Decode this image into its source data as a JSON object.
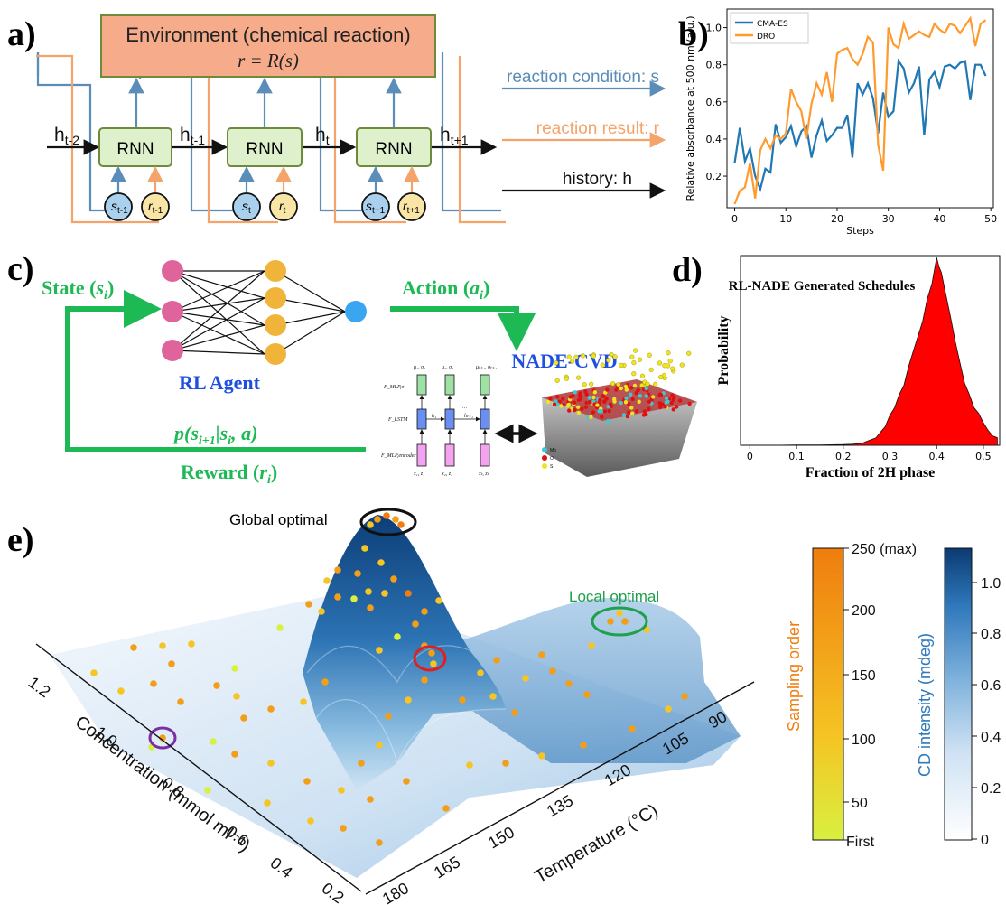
{
  "panel_a": {
    "label": "a)",
    "environment_title": "Environment (chemical reaction)",
    "environment_formula": "r = R(s)",
    "rnn_label": "RNN",
    "hidden_states": [
      "h",
      "h",
      "h",
      "h"
    ],
    "hidden_subs": [
      "t-2",
      "t-1",
      "t",
      "t+1"
    ],
    "s_subs": [
      "t-1",
      "t",
      "t+1"
    ],
    "r_subs": [
      "t-1",
      "t",
      "t+1"
    ],
    "legend": {
      "condition": "reaction condition: s",
      "result": "reaction result: r",
      "history": "history: h"
    },
    "colors": {
      "condition": "#5b8db8",
      "result": "#f4a46a",
      "history": "#111111",
      "env_fill": "#f6ab8a",
      "rnn_fill": "#dff0cc"
    }
  },
  "panel_b": {
    "label": "b)",
    "chart_data": {
      "type": "line",
      "xlabel": "Steps",
      "ylabel": "Relative absorbance at 500 nm (a.u.)",
      "xlim": [
        -1.5,
        50.5
      ],
      "ylim": [
        0.03,
        1.1
      ],
      "xticks": [
        0,
        10,
        20,
        30,
        40,
        50
      ],
      "yticks": [
        0.2,
        0.4,
        0.6,
        0.8,
        1.0
      ],
      "ytick_labels": [
        "0.2",
        "0.4",
        "0.6",
        "0.8",
        "1.0"
      ],
      "legend_position": "top-left",
      "series": [
        {
          "name": "CMA-ES",
          "color": "#1f77b4",
          "x": [
            0,
            1,
            2,
            3,
            4,
            5,
            6,
            7,
            8,
            9,
            10,
            11,
            12,
            13,
            14,
            15,
            16,
            17,
            18,
            19,
            20,
            21,
            22,
            23,
            24,
            25,
            26,
            27,
            28,
            29,
            30,
            31,
            32,
            33,
            34,
            35,
            36,
            37,
            38,
            39,
            40,
            41,
            42,
            43,
            44,
            45,
            46,
            47,
            48,
            49
          ],
          "values": [
            0.27,
            0.46,
            0.28,
            0.35,
            0.2,
            0.13,
            0.24,
            0.22,
            0.48,
            0.38,
            0.41,
            0.47,
            0.36,
            0.44,
            0.47,
            0.3,
            0.42,
            0.5,
            0.39,
            0.42,
            0.46,
            0.46,
            0.53,
            0.3,
            0.7,
            0.64,
            0.7,
            0.62,
            0.43,
            0.65,
            0.52,
            0.55,
            0.82,
            0.78,
            0.65,
            0.7,
            0.79,
            0.42,
            0.72,
            0.76,
            0.68,
            0.79,
            0.8,
            0.78,
            0.81,
            0.82,
            0.61,
            0.8,
            0.8,
            0.74
          ]
        },
        {
          "name": "DRO",
          "color": "#ff9a2e",
          "x": [
            0,
            1,
            2,
            3,
            4,
            5,
            6,
            7,
            8,
            9,
            10,
            11,
            12,
            13,
            14,
            15,
            16,
            17,
            18,
            19,
            20,
            21,
            22,
            23,
            24,
            25,
            26,
            27,
            28,
            29,
            30,
            31,
            32,
            33,
            34,
            35,
            36,
            37,
            38,
            39,
            40,
            41,
            42,
            43,
            44,
            45,
            46,
            47,
            48,
            49
          ],
          "values": [
            0.05,
            0.12,
            0.14,
            0.27,
            0.08,
            0.34,
            0.4,
            0.35,
            0.42,
            0.4,
            0.43,
            0.67,
            0.6,
            0.55,
            0.4,
            0.59,
            0.7,
            0.64,
            0.76,
            0.6,
            0.86,
            0.88,
            0.89,
            0.83,
            0.8,
            0.86,
            0.95,
            0.92,
            0.37,
            0.23,
            1.0,
            0.91,
            0.89,
            1.02,
            0.94,
            0.96,
            0.98,
            0.96,
            0.95,
            1.02,
            0.99,
            0.97,
            1.02,
            1.01,
            0.97,
            1.01,
            1.05,
            0.9,
            1.02,
            1.04
          ]
        }
      ]
    }
  },
  "panel_c": {
    "label": "c)",
    "state_label": "State (",
    "state_var": "s",
    "state_sub": "i",
    "action_label": "Action (",
    "action_var": "a",
    "action_sub": "i",
    "agent_label": "RL Agent",
    "env_label": "NADE-CVD",
    "transition_label": "p(s",
    "transition_sub1": "i+1",
    "transition_mid": "|s",
    "transition_sub2": "i",
    "transition_end": ", a)",
    "reward_label": "Reward (",
    "reward_var": "r",
    "reward_sub": "i",
    "nade_top": [
      "μ₂, σ₂",
      "μ₃, σ₃",
      "μₜ₊₁, σₜ₊₁"
    ],
    "nade_bottom": [
      "x₁, z₁",
      "x₂, z₂",
      "xₜ, zₜ"
    ],
    "nade_left": [
      "F_MLP,σ",
      "F_LSTM",
      "F_MLP,encoder"
    ],
    "nade_h": [
      "h₁",
      "hₜ₋₁"
    ],
    "atom_legend": [
      "Mo",
      "O",
      "S"
    ],
    "colors": {
      "green": "#1db954",
      "blue": "#1f4fe0",
      "pink": "#e0649c",
      "gold": "#f0b43a",
      "cyan": "#3aa5f0"
    }
  },
  "panel_d": {
    "label": "d)",
    "chart_data": {
      "type": "area",
      "title": "RL-NADE Generated Schedules",
      "xlabel": "Fraction of 2H phase",
      "ylabel": "Probability",
      "xlim": [
        -0.02,
        0.535
      ],
      "xticks": [
        0,
        0.1,
        0.2,
        0.3,
        0.4,
        0.5
      ],
      "xtick_labels": [
        "0",
        "0.1",
        "0.2",
        "0.3",
        "0.4",
        "0.5"
      ],
      "fill": "#ff0000",
      "x": [
        0.0,
        0.05,
        0.1,
        0.15,
        0.2,
        0.22,
        0.24,
        0.25,
        0.26,
        0.27,
        0.28,
        0.29,
        0.3,
        0.31,
        0.32,
        0.33,
        0.34,
        0.35,
        0.36,
        0.37,
        0.38,
        0.39,
        0.395,
        0.4,
        0.405,
        0.41,
        0.42,
        0.43,
        0.44,
        0.45,
        0.46,
        0.47,
        0.48,
        0.49,
        0.5,
        0.51,
        0.52,
        0.53
      ],
      "values": [
        0.0,
        0.0,
        0.002,
        0.002,
        0.004,
        0.006,
        0.01,
        0.02,
        0.03,
        0.04,
        0.07,
        0.1,
        0.16,
        0.2,
        0.27,
        0.32,
        0.42,
        0.5,
        0.58,
        0.66,
        0.78,
        0.86,
        0.93,
        1.0,
        0.95,
        0.92,
        0.8,
        0.68,
        0.55,
        0.44,
        0.33,
        0.27,
        0.2,
        0.17,
        0.12,
        0.08,
        0.05,
        0.04
      ]
    }
  },
  "panel_e": {
    "label": "e)",
    "global_label": "Global optimal",
    "local_label": "Local optimal",
    "concentration_label": "Concentration (mmol ml⁻¹)",
    "concentration_ticks": [
      "1.2",
      "1.0",
      "0.8",
      "0.6",
      "0.4",
      "0.2"
    ],
    "temperature_label": "Temperature (°C)",
    "temperature_ticks": [
      "180",
      "165",
      "150",
      "135",
      "120",
      "105",
      "90"
    ],
    "sampling_colorbar": {
      "label": "Sampling order",
      "ticks": [
        "250 (max)",
        "200",
        "150",
        "100",
        "50",
        "First"
      ],
      "colors": [
        "#d5ef3d",
        "#f7c521",
        "#f29e18",
        "#ef7d0f"
      ]
    },
    "cd_colorbar": {
      "label": "CD intensity (mdeg)",
      "ticks": [
        "1.0",
        "0.8",
        "0.6",
        "0.4",
        "0.2",
        "0"
      ],
      "colors": [
        "#ffffff",
        "#cfe2f4",
        "#7fb2dc",
        "#2f79bc",
        "#0b3a73"
      ]
    }
  }
}
